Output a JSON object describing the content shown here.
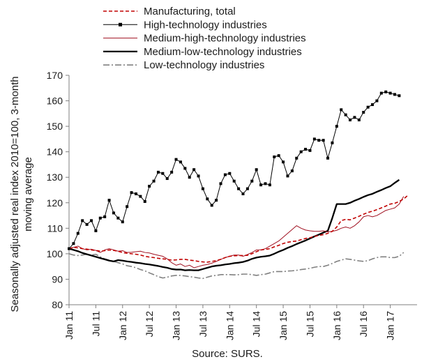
{
  "chart_data": {
    "type": "line",
    "source": "Source: SURS.",
    "ylabel_lines": [
      "Seasonally adjusted real index 2010=100, 3-month",
      "moving average"
    ],
    "ylim": [
      80,
      170
    ],
    "yticks": [
      80,
      90,
      100,
      110,
      120,
      130,
      140,
      150,
      160,
      170
    ],
    "x_range": [
      0,
      78
    ],
    "xticks": [
      {
        "label": "Jan 11",
        "index": 0
      },
      {
        "label": "Jul 11",
        "index": 6
      },
      {
        "label": "Jan 12",
        "index": 12
      },
      {
        "label": "Jul 12",
        "index": 18
      },
      {
        "label": "Jan 13",
        "index": 24
      },
      {
        "label": "Jul 13",
        "index": 30
      },
      {
        "label": "Jan 14",
        "index": 36
      },
      {
        "label": "Jul 14",
        "index": 42
      },
      {
        "label": "Jan 15",
        "index": 48
      },
      {
        "label": "Jul 15",
        "index": 54
      },
      {
        "label": "Jan 16",
        "index": 60
      },
      {
        "label": "Jul 16",
        "index": 66
      },
      {
        "label": "Jan 17",
        "index": 72
      }
    ],
    "legend_position": "top",
    "series": [
      {
        "name": "Manufacturing, total",
        "style": "dashed",
        "color": "#c00000",
        "values": [
          102,
          102.5,
          102.3,
          102,
          101.8,
          101.5,
          101.3,
          101,
          101.2,
          101.5,
          101.3,
          101,
          100.5,
          100.2,
          100,
          99.8,
          99.5,
          99,
          98.7,
          98.5,
          98.2,
          98,
          97.8,
          97.5,
          97.6,
          97.8,
          97.8,
          97.5,
          97.3,
          97,
          96.8,
          96.7,
          97,
          97.3,
          97.8,
          98.5,
          99,
          99.2,
          99.3,
          99.3,
          99.4,
          100,
          100.8,
          101.5,
          101.7,
          102,
          102.7,
          103.3,
          104,
          104.5,
          104.8,
          105,
          105.5,
          106,
          106.3,
          106.8,
          107.2,
          107.5,
          108,
          108.8,
          110.5,
          113,
          113.5,
          113.3,
          114,
          114.7,
          115.5,
          116.2,
          116.7,
          117.3,
          118,
          118.7,
          119.5,
          119.8,
          120.5,
          121.5,
          123
        ]
      },
      {
        "name": "High-technology industries",
        "style": "markers",
        "color": "#000000",
        "values": [
          102,
          104,
          108,
          113,
          111.5,
          113,
          109,
          114,
          114.5,
          121,
          116,
          114,
          112.5,
          118.5,
          124,
          123.5,
          122.5,
          120.5,
          126.5,
          128.5,
          132,
          131.5,
          129.5,
          132,
          137,
          136,
          133.5,
          130,
          133,
          130.5,
          125.5,
          121.5,
          119,
          121,
          127.5,
          131,
          131.5,
          128.5,
          125.5,
          123.5,
          125.5,
          128.5,
          133,
          127,
          127.5,
          127,
          138,
          138.5,
          136,
          130.5,
          132.5,
          137.5,
          140,
          141,
          140.5,
          145,
          144.5,
          144.5,
          137.5,
          143.5,
          150,
          156.5,
          154.5,
          152.5,
          153.5,
          152.5,
          155.5,
          157.5,
          158.5,
          160,
          163,
          163.5,
          163,
          162.5,
          162
        ]
      },
      {
        "name": "Medium-high-technology industries",
        "style": "thin",
        "color": "#a01020",
        "values": [
          102,
          102.5,
          103,
          102,
          101.5,
          101.8,
          101.3,
          100.5,
          101.5,
          102,
          101.5,
          101,
          101.2,
          100.5,
          100.6,
          100.8,
          101,
          100.5,
          100.3,
          99.8,
          99.4,
          99,
          98,
          96.5,
          95.5,
          96,
          95,
          95.5,
          94.5,
          95,
          95.5,
          95.8,
          96.3,
          97,
          97.8,
          98.5,
          99,
          99.5,
          99.5,
          99,
          99.7,
          100.5,
          101.5,
          101.5,
          102,
          103,
          104,
          105,
          106.5,
          108,
          109.5,
          111,
          110,
          109.3,
          109,
          108.8,
          108.8,
          109,
          108.6,
          108.8,
          109.2,
          110,
          110.5,
          110,
          111,
          112.5,
          114.5,
          115,
          114.5,
          115,
          116,
          117,
          117.5,
          118,
          119.5,
          122.5
        ]
      },
      {
        "name": "Medium-low-technology industries",
        "style": "thick",
        "color": "#000000",
        "values": [
          102,
          101.5,
          101,
          100.3,
          99.8,
          99.3,
          98.8,
          98.3,
          97.8,
          97.3,
          97,
          97.5,
          97.3,
          97,
          96.8,
          96.5,
          96.3,
          96,
          95.8,
          95.5,
          95.2,
          94.8,
          94.5,
          94,
          93.8,
          93.8,
          93.5,
          93.6,
          93.5,
          93.5,
          94,
          94.5,
          95,
          95.3,
          95.5,
          95.8,
          96,
          96.3,
          96.5,
          96.8,
          97.3,
          98,
          98.5,
          98.8,
          99,
          99.3,
          100,
          100.8,
          101.5,
          102.3,
          103,
          103.8,
          104.5,
          105.2,
          106,
          106.8,
          107.5,
          108.3,
          109,
          114,
          119.5,
          119.5,
          119.5,
          120,
          120.8,
          121.5,
          122.3,
          123,
          123.5,
          124.3,
          125,
          125.8,
          126.5,
          127.8,
          129
        ]
      },
      {
        "name": "Low-technology industries",
        "style": "dashdot",
        "color": "#808080",
        "values": [
          100,
          99.5,
          99.3,
          99.5,
          99.8,
          99.5,
          99.8,
          98.8,
          98,
          97.5,
          97,
          96.5,
          96,
          95.3,
          95,
          94.5,
          93.8,
          93.3,
          92.5,
          91.8,
          91,
          90.5,
          90.8,
          91.3,
          91.5,
          91.5,
          91.3,
          91,
          90.8,
          90.5,
          90.3,
          90.8,
          91.3,
          91.5,
          91.8,
          91.8,
          91.8,
          91.7,
          91.8,
          92,
          92,
          91.8,
          91.5,
          91.8,
          92,
          92.5,
          93,
          93,
          93,
          93.2,
          93.3,
          93.5,
          93.8,
          94,
          94.3,
          94.7,
          95,
          95,
          95.5,
          96.2,
          97,
          97.5,
          98,
          97.8,
          97.5,
          97.2,
          97,
          97.3,
          98,
          98.5,
          98.8,
          98.8,
          98.5,
          98.5,
          99,
          100.5
        ]
      }
    ]
  }
}
